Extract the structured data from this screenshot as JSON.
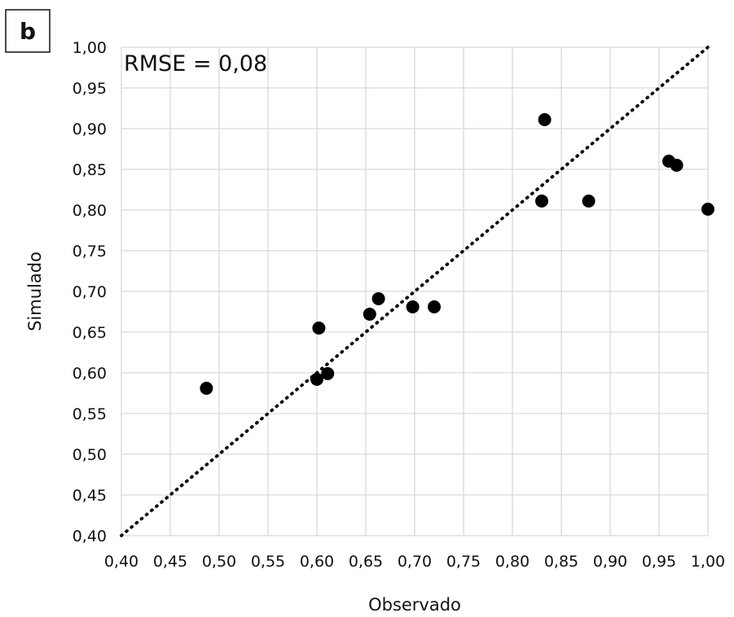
{
  "chart_data": {
    "type": "scatter",
    "panel_label": "b",
    "annotation": "RMSE = 0,08",
    "xlabel": "Observado",
    "ylabel": "Simulado",
    "xlim": [
      0.4,
      1.0
    ],
    "ylim": [
      0.4,
      1.0
    ],
    "tick_step": 0.05,
    "x_ticks": [
      "0,40",
      "0,45",
      "0,50",
      "0,55",
      "0,60",
      "0,65",
      "0,70",
      "0,75",
      "0,80",
      "0,85",
      "0,90",
      "0,95",
      "1,00"
    ],
    "y_ticks": [
      "0,40",
      "0,45",
      "0,50",
      "0,55",
      "0,60",
      "0,65",
      "0,70",
      "0,75",
      "0,80",
      "0,85",
      "0,90",
      "0,95",
      "1,00"
    ],
    "grid": true,
    "reference_line": {
      "style": "dotted",
      "from": [
        0.4,
        0.4
      ],
      "to": [
        1.0,
        1.0
      ]
    },
    "marker_color": "#000000",
    "points": [
      {
        "x": 0.487,
        "y": 0.581
      },
      {
        "x": 0.6,
        "y": 0.592
      },
      {
        "x": 0.602,
        "y": 0.655
      },
      {
        "x": 0.611,
        "y": 0.599
      },
      {
        "x": 0.654,
        "y": 0.672
      },
      {
        "x": 0.663,
        "y": 0.691
      },
      {
        "x": 0.698,
        "y": 0.681
      },
      {
        "x": 0.72,
        "y": 0.681
      },
      {
        "x": 0.83,
        "y": 0.811
      },
      {
        "x": 0.833,
        "y": 0.911
      },
      {
        "x": 0.878,
        "y": 0.811
      },
      {
        "x": 0.96,
        "y": 0.86
      },
      {
        "x": 0.968,
        "y": 0.855
      },
      {
        "x": 1.0,
        "y": 0.801
      }
    ]
  }
}
